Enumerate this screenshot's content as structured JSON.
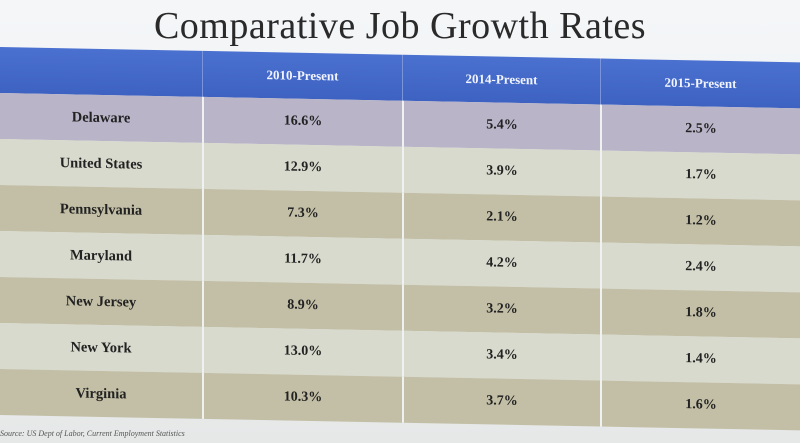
{
  "title": "Comparative Job Growth Rates",
  "chart_data": {
    "type": "table",
    "columns": [
      "",
      "2010-Present",
      "2014-Present",
      "2015-Present"
    ],
    "rows": [
      {
        "state": "Delaware",
        "values": [
          "16.6%",
          "5.4%",
          "2.5%"
        ]
      },
      {
        "state": "United States",
        "values": [
          "12.9%",
          "3.9%",
          "1.7%"
        ]
      },
      {
        "state": "Pennsylvania",
        "values": [
          "7.3%",
          "2.1%",
          "1.2%"
        ]
      },
      {
        "state": "Maryland",
        "values": [
          "11.7%",
          "4.2%",
          "2.4%"
        ]
      },
      {
        "state": "New Jersey",
        "values": [
          "8.9%",
          "3.2%",
          "1.8%"
        ]
      },
      {
        "state": "New York",
        "values": [
          "13.0%",
          "3.4%",
          "1.4%"
        ]
      },
      {
        "state": "Virginia",
        "values": [
          "10.3%",
          "3.7%",
          "1.6%"
        ]
      }
    ]
  },
  "source": "Source: US Dept of Labor, Current Employment Statistics",
  "colors": {
    "header": "#3d62c2",
    "row_dark": "#c3bfa6",
    "row_light": "#d8dacd",
    "row_first": "#b9b4c8"
  }
}
